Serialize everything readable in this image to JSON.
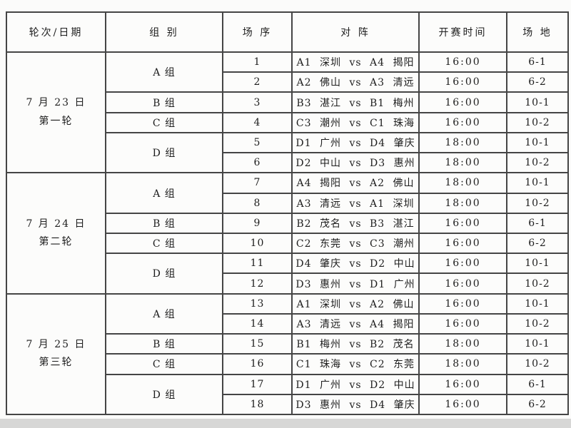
{
  "table": {
    "headers": {
      "round_date": "轮次/日期",
      "group": "组 别",
      "match_no": "场 序",
      "matchup": "对 阵",
      "start_time": "开赛时间",
      "venue": "场 地"
    },
    "rounds": [
      {
        "date_label": "7 月 23 日",
        "round_label": "第一轮",
        "groups": [
          {
            "group": "A 组",
            "matches": [
              {
                "no": "1",
                "matchup": "A1 深圳 vs A4 揭阳",
                "time": "16:00",
                "venue": "6-1"
              },
              {
                "no": "2",
                "matchup": "A2 佛山 vs A3 清远",
                "time": "16:00",
                "venue": "6-2"
              }
            ]
          },
          {
            "group": "B 组",
            "matches": [
              {
                "no": "3",
                "matchup": "B3 湛江 vs B1 梅州",
                "time": "16:00",
                "venue": "10-1"
              }
            ]
          },
          {
            "group": "C 组",
            "matches": [
              {
                "no": "4",
                "matchup": "C3 潮州 vs C1 珠海",
                "time": "16:00",
                "venue": "10-2"
              }
            ]
          },
          {
            "group": "D 组",
            "matches": [
              {
                "no": "5",
                "matchup": "D1 广州 vs D4 肇庆",
                "time": "18:00",
                "venue": "10-1"
              },
              {
                "no": "6",
                "matchup": "D2 中山 vs D3 惠州",
                "time": "18:00",
                "venue": "10-2"
              }
            ]
          }
        ]
      },
      {
        "date_label": "7 月 24 日",
        "round_label": "第二轮",
        "groups": [
          {
            "group": "A 组",
            "matches": [
              {
                "no": "7",
                "matchup": "A4 揭阳 vs A2 佛山",
                "time": "18:00",
                "venue": "10-1"
              },
              {
                "no": "8",
                "matchup": "A3 清远 vs A1 深圳",
                "time": "18:00",
                "venue": "10-2"
              }
            ]
          },
          {
            "group": "B 组",
            "matches": [
              {
                "no": "9",
                "matchup": "B2 茂名 vs B3 湛江",
                "time": "16:00",
                "venue": "6-1"
              }
            ]
          },
          {
            "group": "C 组",
            "matches": [
              {
                "no": "10",
                "matchup": "C2 东莞 vs C3 潮州",
                "time": "16:00",
                "venue": "6-2"
              }
            ]
          },
          {
            "group": "D 组",
            "matches": [
              {
                "no": "11",
                "matchup": "D4 肇庆 vs D2 中山",
                "time": "16:00",
                "venue": "10-1"
              },
              {
                "no": "12",
                "matchup": "D3 惠州 vs D1 广州",
                "time": "16:00",
                "venue": "10-2"
              }
            ]
          }
        ]
      },
      {
        "date_label": "7 月 25 日",
        "round_label": "第三轮",
        "groups": [
          {
            "group": "A 组",
            "matches": [
              {
                "no": "13",
                "matchup": "A1 深圳 vs A2 佛山",
                "time": "16:00",
                "venue": "10-1"
              },
              {
                "no": "14",
                "matchup": "A3 清远 vs A4 揭阳",
                "time": "16:00",
                "venue": "10-2"
              }
            ]
          },
          {
            "group": "B 组",
            "matches": [
              {
                "no": "15",
                "matchup": "B1 梅州 vs B2 茂名",
                "time": "18:00",
                "venue": "10-1"
              }
            ]
          },
          {
            "group": "C 组",
            "matches": [
              {
                "no": "16",
                "matchup": "C1 珠海 vs C2 东莞",
                "time": "18:00",
                "venue": "10-2"
              }
            ]
          },
          {
            "group": "D 组",
            "matches": [
              {
                "no": "17",
                "matchup": "D1 广州 vs D2 中山",
                "time": "16:00",
                "venue": "6-1"
              },
              {
                "no": "18",
                "matchup": "D3 惠州 vs D4 肇庆",
                "time": "16:00",
                "venue": "6-2"
              }
            ]
          }
        ]
      }
    ]
  }
}
